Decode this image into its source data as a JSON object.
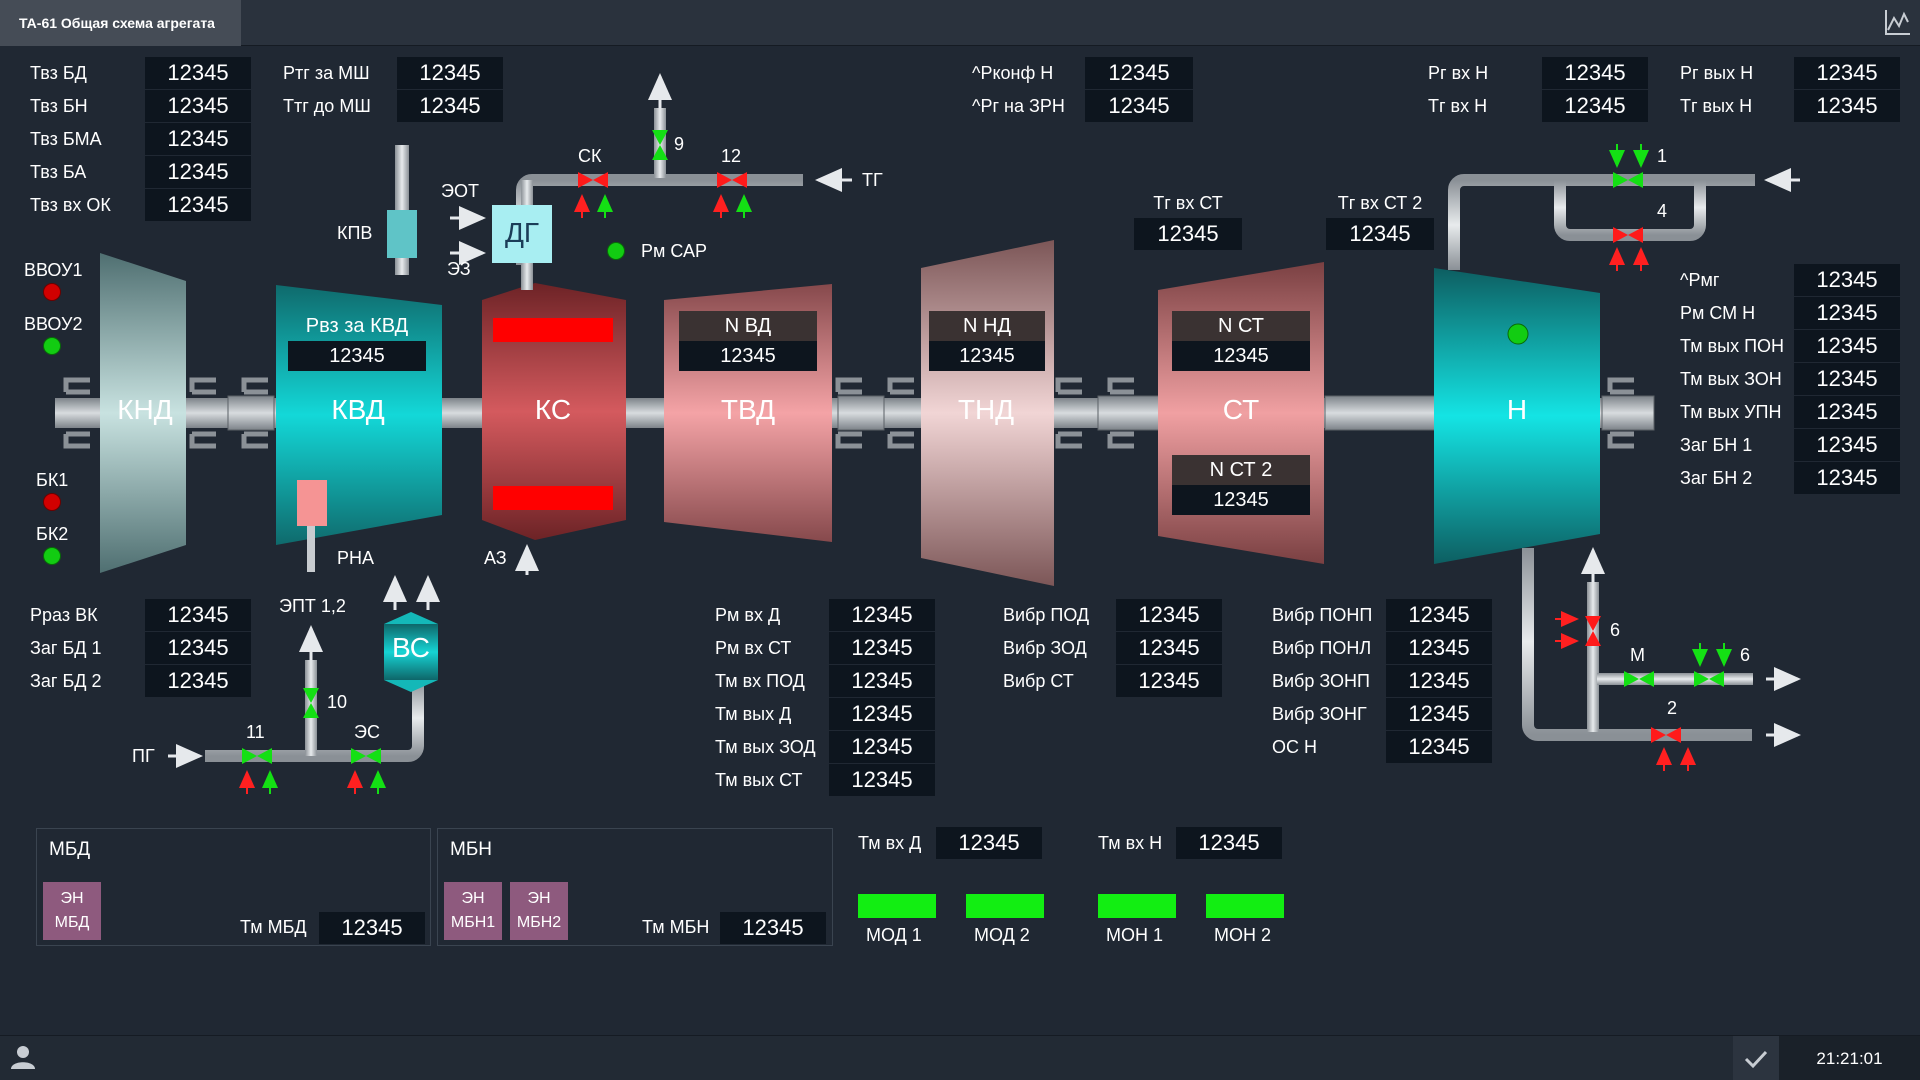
{
  "window": {
    "tab_title": "ТА-61 Общая схема агрегата"
  },
  "status": {
    "time": "21:21:01"
  },
  "colors": {
    "background": "#202833",
    "value_box": "#0d151e",
    "alarm_red": "#d10000",
    "ok_green": "#12ee12",
    "turbine_cyan": "#14d2d2",
    "pump_purple": "#8e5a7e"
  },
  "icons": {
    "trend": "chart-line-icon",
    "user": "user-icon",
    "confirm": "check-icon"
  },
  "left_params": [
    {
      "label": "Твз БД",
      "value": "12345"
    },
    {
      "label": "Твз БН",
      "value": "12345"
    },
    {
      "label": "Твз БМА",
      "value": "12345"
    },
    {
      "label": "Твз БА",
      "value": "12345"
    },
    {
      "label": "Твз вх ОК",
      "value": "12345"
    }
  ],
  "fuel_params": [
    {
      "label": "Ртг за МШ",
      "value": "12345"
    },
    {
      "label": "Ттг до МШ",
      "value": "12345"
    }
  ],
  "reg_params": [
    {
      "label": "^Рконф Н",
      "value": "12345"
    },
    {
      "label": "^Рг на ЗРН",
      "value": "12345"
    }
  ],
  "gas_in": [
    {
      "label": "Рг вх Н",
      "value": "12345"
    },
    {
      "label": "Тг вх Н",
      "value": "12345"
    }
  ],
  "gas_out": [
    {
      "label": "Рг вых Н",
      "value": "12345"
    },
    {
      "label": "Тг вых Н",
      "value": "12345"
    }
  ],
  "st_inlet": [
    {
      "label": "Тг вх СТ",
      "value": "12345"
    },
    {
      "label": "Тг вх СТ 2",
      "value": "12345"
    }
  ],
  "right_params": [
    {
      "label": "^Рмг",
      "value": "12345"
    },
    {
      "label": "Рм СМ Н",
      "value": "12345"
    },
    {
      "label": "Тм вых ПОН",
      "value": "12345"
    },
    {
      "label": "Тм вых ЗОН",
      "value": "12345"
    },
    {
      "label": "Тм вых УПН",
      "value": "12345"
    },
    {
      "label": "Заг БН 1",
      "value": "12345"
    },
    {
      "label": "Заг БН 2",
      "value": "12345"
    }
  ],
  "lower_left_params": [
    {
      "label": "Рраз ВК",
      "value": "12345"
    },
    {
      "label": "Заг БД 1",
      "value": "12345"
    },
    {
      "label": "Заг БД 2",
      "value": "12345"
    }
  ],
  "oil_params": [
    {
      "label": "Рм вх Д",
      "value": "12345"
    },
    {
      "label": "Рм вх СТ",
      "value": "12345"
    },
    {
      "label": "Тм вх ПОД",
      "value": "12345"
    },
    {
      "label": "Тм вых Д",
      "value": "12345"
    },
    {
      "label": "Тм вых ЗОД",
      "value": "12345"
    },
    {
      "label": "Тм вых СТ",
      "value": "12345"
    }
  ],
  "vibr_engine": [
    {
      "label": "Вибр ПОД",
      "value": "12345"
    },
    {
      "label": "Вибр ЗОД",
      "value": "12345"
    },
    {
      "label": "Вибр СТ",
      "value": "12345"
    }
  ],
  "vibr_pump": [
    {
      "label": "Вибр ПОНП",
      "value": "12345"
    },
    {
      "label": "Вибр ПОНЛ",
      "value": "12345"
    },
    {
      "label": "Вибр ЗОНП",
      "value": "12345"
    },
    {
      "label": "Вибр ЗОНГ",
      "value": "12345"
    },
    {
      "label": "ОС Н",
      "value": "12345"
    }
  ],
  "units": {
    "knd": "КНД",
    "kvd": "КВД",
    "ks": "КС",
    "tvd": "ТВД",
    "tnd": "ТНД",
    "st": "СТ",
    "n": "Н",
    "dg": "ДГ",
    "vs": "ВС"
  },
  "unit_values": {
    "kvd": {
      "label": "Рвз за КВД",
      "value": "12345"
    },
    "tvd": {
      "label": "N ВД",
      "value": "12345"
    },
    "tnd": {
      "label": "N НД",
      "value": "12345"
    },
    "st1": {
      "label": "N СТ",
      "value": "12345"
    },
    "st2": {
      "label": "N СТ 2",
      "value": "12345"
    }
  },
  "labels": {
    "kpv": "КПВ",
    "eot": "ЭОТ",
    "ez": "ЭЗ",
    "rm_sar": "Рм САР",
    "sk": "СК",
    "tg": "ТГ",
    "rna": "РНА",
    "az": "АЗ",
    "ept": "ЭПТ 1,2",
    "es": "ЭС",
    "pg": "ПГ",
    "m": "М",
    "vvou1": "ВВОУ1",
    "vvou2": "ВВОУ2",
    "bk1": "БК1",
    "bk2": "БК2"
  },
  "valves": {
    "v1": "1",
    "v2": "2",
    "v4": "4",
    "v6a": "6",
    "v6b": "6",
    "v9": "9",
    "v10": "10",
    "v11": "11",
    "v12": "12"
  },
  "mbd": {
    "title": "МБД",
    "pump": "ЭН МБД",
    "temp_label": "Тм МБД",
    "temp_value": "12345"
  },
  "mbn": {
    "title": "МБН",
    "pump1": "ЭН МБН1",
    "pump2": "ЭН МБН2",
    "temp_label": "Тм МБН",
    "temp_value": "12345"
  },
  "bearing_temps": [
    {
      "label": "Тм вх Д",
      "value": "12345"
    },
    {
      "label": "Тм вх Н",
      "value": "12345"
    }
  ],
  "oil_pumps": [
    "МОД 1",
    "МОД 2",
    "МОН 1",
    "МОН 2"
  ]
}
